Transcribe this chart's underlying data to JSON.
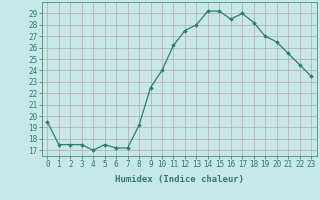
{
  "x": [
    0,
    1,
    2,
    3,
    4,
    5,
    6,
    7,
    8,
    9,
    10,
    11,
    12,
    13,
    14,
    15,
    16,
    17,
    18,
    19,
    20,
    21,
    22,
    23
  ],
  "y": [
    19.5,
    17.5,
    17.5,
    17.5,
    17.0,
    17.5,
    17.2,
    17.2,
    19.2,
    22.5,
    24.0,
    26.2,
    27.5,
    28.0,
    29.2,
    29.2,
    28.5,
    29.0,
    28.2,
    27.0,
    26.5,
    25.5,
    24.5,
    23.5
  ],
  "line_color": "#2e7d6e",
  "marker": "D",
  "marker_size": 1.8,
  "bg_color": "#c8e8e8",
  "grid_color": "#b8a8a8",
  "xlabel": "Humidex (Indice chaleur)",
  "ylim": [
    16.5,
    30
  ],
  "xlim": [
    -0.5,
    23.5
  ],
  "yticks": [
    17,
    18,
    19,
    20,
    21,
    22,
    23,
    24,
    25,
    26,
    27,
    28,
    29
  ],
  "xtick_labels": [
    "0",
    "1",
    "2",
    "3",
    "4",
    "5",
    "6",
    "7",
    "8",
    "9",
    "10",
    "11",
    "12",
    "13",
    "14",
    "15",
    "16",
    "17",
    "18",
    "19",
    "20",
    "21",
    "22",
    "23"
  ],
  "tick_fontsize": 5.5,
  "xlabel_fontsize": 6.5,
  "linewidth": 0.9
}
